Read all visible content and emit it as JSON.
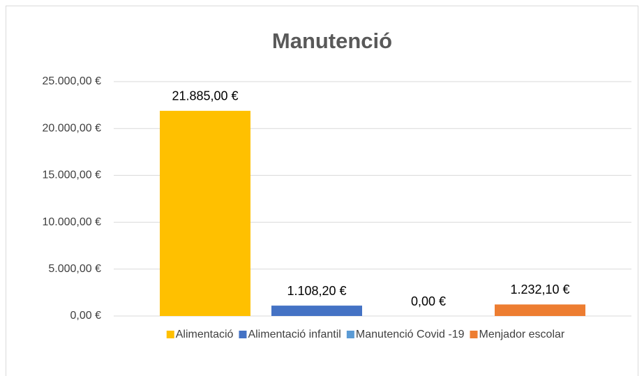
{
  "chart_data": {
    "type": "bar",
    "title": "Manutenció",
    "categories": [
      null
    ],
    "series": [
      {
        "name": "Alimentació",
        "color": "#FFC000",
        "values": [
          21885
        ],
        "value_labels": [
          "21.885,00 €"
        ]
      },
      {
        "name": "Alimentació infantil",
        "color": "#4472C4",
        "values": [
          1108.2
        ],
        "value_labels": [
          "1.108,20 €"
        ]
      },
      {
        "name": "Manutenció Covid -19",
        "color": "#5B9BD5",
        "values": [
          0
        ],
        "value_labels": [
          "0,00 €"
        ]
      },
      {
        "name": "Menjador escolar",
        "color": "#ED7D31",
        "values": [
          1232.1
        ],
        "value_labels": [
          "1.232,10 €"
        ]
      }
    ],
    "ylim": [
      0,
      25000
    ],
    "yticks": [
      {
        "value": 0,
        "label": "0,00 €"
      },
      {
        "value": 5000,
        "label": "5.000,00 €"
      },
      {
        "value": 10000,
        "label": "10.000,00 €"
      },
      {
        "value": 15000,
        "label": "15.000,00 €"
      },
      {
        "value": 20000,
        "label": "20.000,00 €"
      },
      {
        "value": 25000,
        "label": "25.000,00 €"
      }
    ],
    "grid": true,
    "legend": "bottom"
  }
}
